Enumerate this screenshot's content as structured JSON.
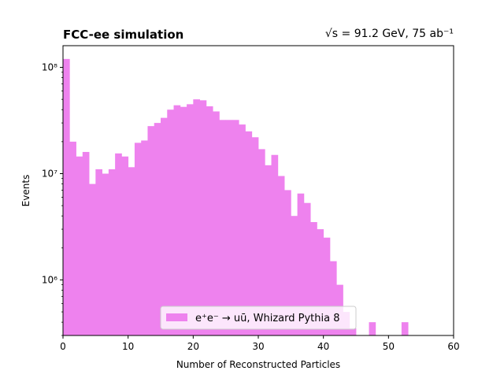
{
  "chart_data": {
    "type": "bar",
    "title_left": "FCC-ee simulation",
    "title_right": "√s = 91.2 GeV, 75 ab⁻¹",
    "xlabel": "Number of Reconstructed Particles",
    "ylabel": "Events",
    "yscale": "log",
    "xlim": [
      0,
      60
    ],
    "ylim": [
      300000,
      160000000
    ],
    "xticks": [
      0,
      10,
      20,
      30,
      40,
      50,
      60
    ],
    "xtick_labels": [
      "0",
      "10",
      "20",
      "30",
      "40",
      "50",
      "60"
    ],
    "yticks": [
      1000000,
      10000000,
      100000000
    ],
    "ytick_labels": [
      "10⁶",
      "10⁷",
      "10⁸"
    ],
    "bin_width": 1,
    "bin_edges_start": 0,
    "values": [
      120000000,
      20000000,
      14500000,
      16000000,
      8000000,
      11000000,
      10000000,
      11000000,
      15500000,
      14500000,
      11500000,
      19500000,
      20500000,
      28000000,
      30000000,
      33500000,
      40000000,
      44000000,
      42500000,
      45000000,
      50000000,
      49000000,
      43000000,
      38500000,
      32000000,
      32000000,
      32000000,
      29000000,
      25000000,
      22000000,
      17000000,
      12000000,
      15000000,
      9500000,
      7000000,
      4000000,
      6500000,
      5300000,
      3500000,
      3000000,
      2500000,
      1500000,
      900000,
      500000,
      350000,
      0,
      0,
      400000,
      0,
      0,
      0,
      0,
      400000,
      0,
      0,
      0,
      0,
      0,
      0,
      0
    ],
    "legend": {
      "label": "e⁺e⁻ → uū, Whizard Pythia 8",
      "color": "#ee82ee",
      "placement": "lower-center"
    },
    "bar_color": "#ee82ee",
    "grid": false
  }
}
